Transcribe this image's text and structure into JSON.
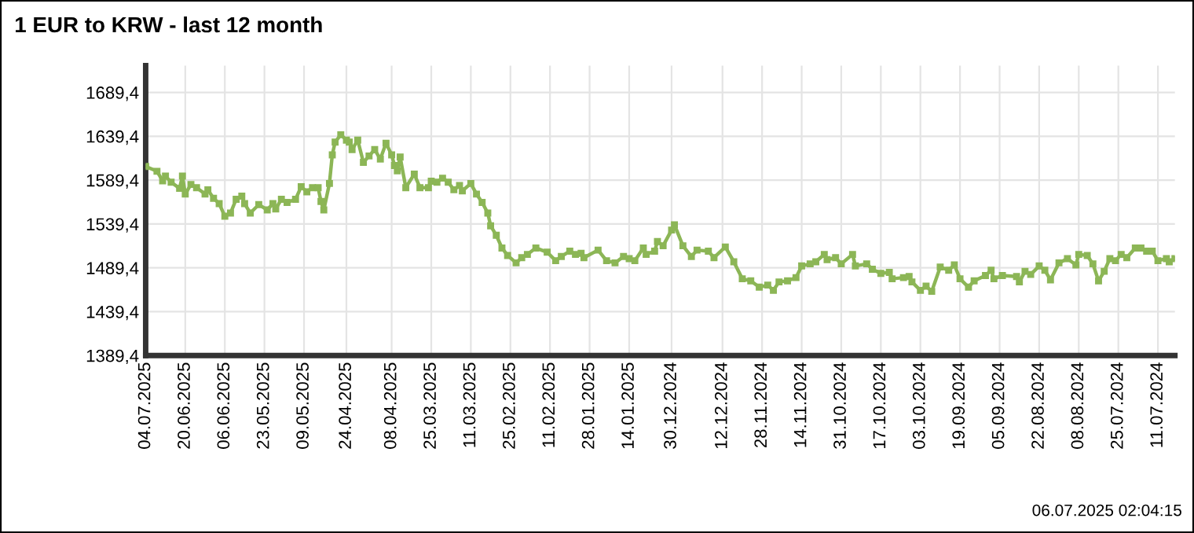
{
  "chart_data": {
    "type": "line",
    "title": "1 EUR to KRW - last 12 month",
    "annotations": [
      "06.07.2025 02:04:15"
    ],
    "x": [
      "2025-07-04",
      "2025-06-30",
      "2025-06-28",
      "2025-06-27",
      "2025-06-25",
      "2025-06-22",
      "2025-06-21",
      "2025-06-20",
      "2025-06-18",
      "2025-06-16",
      "2025-06-13",
      "2025-06-12",
      "2025-06-10",
      "2025-06-08",
      "2025-06-06",
      "2025-06-04",
      "2025-06-02",
      "2025-05-31",
      "2025-05-30",
      "2025-05-28",
      "2025-05-25",
      "2025-05-22",
      "2025-05-20",
      "2025-05-19",
      "2025-05-17",
      "2025-05-15",
      "2025-05-12",
      "2025-05-10",
      "2025-05-08",
      "2025-05-06",
      "2025-05-04",
      "2025-05-03",
      "2025-05-02",
      "2025-04-30",
      "2025-04-29",
      "2025-04-28",
      "2025-04-26",
      "2025-04-24",
      "2025-04-23",
      "2025-04-22",
      "2025-04-20",
      "2025-04-18",
      "2025-04-16",
      "2025-04-14",
      "2025-04-12",
      "2025-04-10",
      "2025-04-08",
      "2025-04-07",
      "2025-04-06",
      "2025-04-05",
      "2025-04-03",
      "2025-03-31",
      "2025-03-29",
      "2025-03-26",
      "2025-03-25",
      "2025-03-23",
      "2025-03-21",
      "2025-03-19",
      "2025-03-17",
      "2025-03-15",
      "2025-03-14",
      "2025-03-11",
      "2025-03-09",
      "2025-03-07",
      "2025-03-05",
      "2025-03-04",
      "2025-03-02",
      "2025-02-28",
      "2025-02-26",
      "2025-02-23",
      "2025-02-21",
      "2025-02-19",
      "2025-02-16",
      "2025-02-12",
      "2025-02-09",
      "2025-02-07",
      "2025-02-04",
      "2025-02-02",
      "2025-01-31",
      "2025-01-30",
      "2025-01-25",
      "2025-01-22",
      "2025-01-19",
      "2025-01-16",
      "2025-01-14",
      "2025-01-12",
      "2025-01-09",
      "2025-01-08",
      "2025-01-05",
      "2025-01-04",
      "2025-01-02",
      "2024-12-30",
      "2024-12-29",
      "2024-12-26",
      "2024-12-23",
      "2024-12-21",
      "2024-12-17",
      "2024-12-15",
      "2024-12-11",
      "2024-12-08",
      "2024-12-05",
      "2024-12-02",
      "2024-11-29",
      "2024-11-26",
      "2024-11-24",
      "2024-11-22",
      "2024-11-19",
      "2024-11-16",
      "2024-11-14",
      "2024-11-11",
      "2024-11-09",
      "2024-11-06",
      "2024-11-05",
      "2024-11-02",
      "2024-10-31",
      "2024-10-27",
      "2024-10-26",
      "2024-10-22",
      "2024-10-20",
      "2024-10-17",
      "2024-10-14",
      "2024-10-13",
      "2024-10-09",
      "2024-10-07",
      "2024-10-06",
      "2024-10-03",
      "2024-10-01",
      "2024-09-29",
      "2024-09-26",
      "2024-09-23",
      "2024-09-21",
      "2024-09-19",
      "2024-09-16",
      "2024-09-14",
      "2024-09-10",
      "2024-09-08",
      "2024-09-07",
      "2024-09-04",
      "2024-08-30",
      "2024-08-29",
      "2024-08-27",
      "2024-08-25",
      "2024-08-22",
      "2024-08-20",
      "2024-08-18",
      "2024-08-15",
      "2024-08-12",
      "2024-08-09",
      "2024-08-08",
      "2024-08-05",
      "2024-08-03",
      "2024-08-01",
      "2024-07-30",
      "2024-07-28",
      "2024-07-26",
      "2024-07-24",
      "2024-07-22",
      "2024-07-19",
      "2024-07-17",
      "2024-07-15",
      "2024-07-13",
      "2024-07-11",
      "2024-07-08",
      "2024-07-07",
      "2024-07-05"
    ],
    "series": [
      {
        "color": "#8cb656",
        "values": [
          1605,
          1599.5,
          1588.6,
          1594,
          1587,
          1580,
          1594,
          1573.5,
          1584.4,
          1580.8,
          1573.5,
          1578.4,
          1568.7,
          1562.6,
          1548.2,
          1551.8,
          1567.5,
          1571.1,
          1562.6,
          1551.8,
          1561.5,
          1555.4,
          1562.6,
          1556.6,
          1567.5,
          1563.9,
          1567.5,
          1582,
          1576,
          1580.8,
          1580.8,
          1565.1,
          1555.4,
          1585.6,
          1618.2,
          1632.7,
          1641.1,
          1635,
          1632.7,
          1624.2,
          1635,
          1609.7,
          1616.9,
          1624.2,
          1613.4,
          1631.5,
          1618.2,
          1606.1,
          1600,
          1615.7,
          1580.8,
          1596.3,
          1580.8,
          1580.8,
          1588.1,
          1587,
          1591.6,
          1587,
          1578.4,
          1583.3,
          1577.2,
          1585.6,
          1573.5,
          1563.9,
          1551.8,
          1537.3,
          1526.5,
          1512,
          1503.5,
          1495,
          1501,
          1504.7,
          1512,
          1507.2,
          1497.5,
          1502.3,
          1508.4,
          1504.7,
          1505.9,
          1501,
          1509.6,
          1497.5,
          1495,
          1502.3,
          1499.9,
          1497.5,
          1512,
          1504.7,
          1508.4,
          1519.3,
          1514.5,
          1532.5,
          1538.5,
          1514.5,
          1502.3,
          1509.6,
          1508.4,
          1501,
          1513.2,
          1496.3,
          1476.9,
          1474.5,
          1467.3,
          1469.7,
          1463.7,
          1473.3,
          1474.5,
          1478.2,
          1491.5,
          1493.9,
          1496.3,
          1504.7,
          1498.7,
          1501,
          1493.9,
          1504.7,
          1491.5,
          1493.9,
          1487.8,
          1483,
          1484.2,
          1476.9,
          1478.2,
          1479.4,
          1473.3,
          1463.7,
          1468.5,
          1462.5,
          1490.3,
          1486.6,
          1492.7,
          1476.9,
          1467.3,
          1474.5,
          1480.6,
          1486.6,
          1476.9,
          1480.6,
          1479.4,
          1473.3,
          1485.4,
          1481.8,
          1491.5,
          1486.6,
          1475.7,
          1495,
          1499.9,
          1492.7,
          1504.7,
          1503.5,
          1493.9,
          1474.5,
          1485.4,
          1499.9,
          1497.5,
          1504.7,
          1501,
          1512,
          1512,
          1508.4,
          1508.4,
          1497.5,
          1499.9,
          1496.3,
          1499.9
        ]
      }
    ],
    "xlim": [
      "2025-07-04",
      "2024-07-05"
    ],
    "xticks": [
      {
        "value": "2025-07-04",
        "label": "04.07.2025"
      },
      {
        "value": "2025-06-20",
        "label": "20.06.2025"
      },
      {
        "value": "2025-06-06",
        "label": "06.06.2025"
      },
      {
        "value": "2025-05-23",
        "label": "23.05.2025"
      },
      {
        "value": "2025-05-09",
        "label": "09.05.2025"
      },
      {
        "value": "2025-04-24",
        "label": "24.04.2025"
      },
      {
        "value": "2025-04-08",
        "label": "08.04.2025"
      },
      {
        "value": "2025-03-25",
        "label": "25.03.2025"
      },
      {
        "value": "2025-03-11",
        "label": "11.03.2025"
      },
      {
        "value": "2025-02-25",
        "label": "25.02.2025"
      },
      {
        "value": "2025-02-11",
        "label": "11.02.2025"
      },
      {
        "value": "2025-01-28",
        "label": "28.01.2025"
      },
      {
        "value": "2025-01-14",
        "label": "14.01.2025"
      },
      {
        "value": "2024-12-30",
        "label": "30.12.2024"
      },
      {
        "value": "2024-12-12",
        "label": "12.12.2024"
      },
      {
        "value": "2024-11-28",
        "label": "28.11.2024"
      },
      {
        "value": "2024-11-14",
        "label": "14.11.2024"
      },
      {
        "value": "2024-10-31",
        "label": "31.10.2024"
      },
      {
        "value": "2024-10-17",
        "label": "17.10.2024"
      },
      {
        "value": "2024-10-03",
        "label": "03.10.2024"
      },
      {
        "value": "2024-09-19",
        "label": "19.09.2024"
      },
      {
        "value": "2024-09-05",
        "label": "05.09.2024"
      },
      {
        "value": "2024-08-22",
        "label": "22.08.2024"
      },
      {
        "value": "2024-08-08",
        "label": "08.08.2024"
      },
      {
        "value": "2024-07-25",
        "label": "25.07.2024"
      },
      {
        "value": "2024-07-11",
        "label": "11.07.2024"
      }
    ],
    "ylim": [
      1389.4,
      1720
    ],
    "yticks": [
      {
        "value": 1389.4,
        "label": "1389,4"
      },
      {
        "value": 1439.4,
        "label": "1439,4"
      },
      {
        "value": 1489.4,
        "label": "1489,4"
      },
      {
        "value": 1539.4,
        "label": "1539,4"
      },
      {
        "value": 1589.4,
        "label": "1589,4"
      },
      {
        "value": 1639.4,
        "label": "1639,4"
      },
      {
        "value": 1689.4,
        "label": "1689,4"
      }
    ],
    "grid": true,
    "legend": false,
    "marker": "square",
    "line_style": "solid"
  }
}
